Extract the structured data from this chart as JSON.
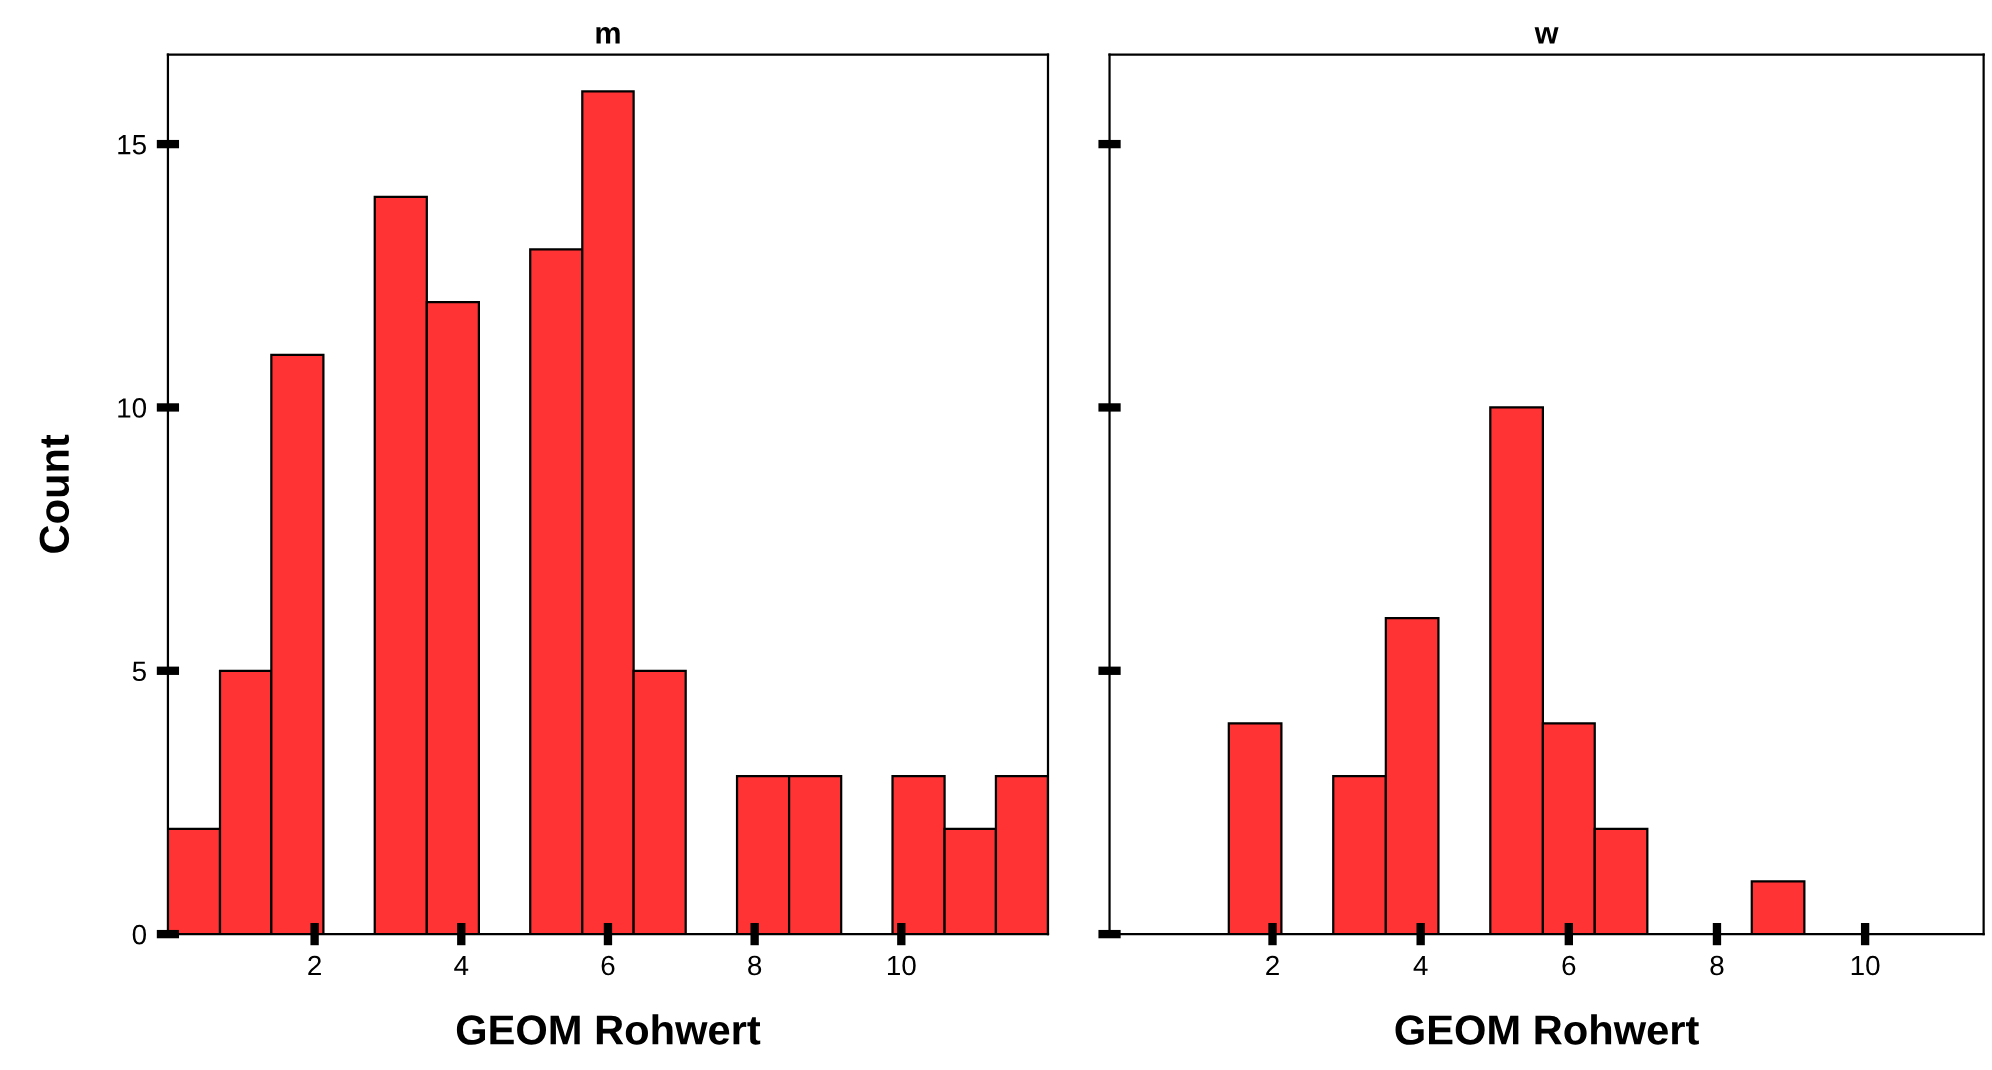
{
  "chart_data": [
    {
      "type": "histogram",
      "title": "m",
      "xlabel": "GEOM Rohwert",
      "ylabel": "Count",
      "color": "#ff3333",
      "bins": [
        0,
        0.71,
        1.41,
        2.12,
        2.82,
        3.53,
        4.24,
        4.94,
        5.65,
        6.35,
        7.06,
        7.76,
        8.47,
        9.18,
        9.88,
        10.59,
        11.29,
        12
      ],
      "values": [
        2,
        5,
        11,
        0,
        14,
        12,
        0,
        13,
        16,
        5,
        0,
        3,
        3,
        0,
        3,
        2,
        3
      ],
      "xlim": [
        0,
        12
      ],
      "xticks": [
        2,
        4,
        6,
        8,
        10
      ],
      "ylim": [
        0,
        16.7
      ],
      "yticks": [
        0,
        5,
        10,
        15
      ],
      "grid": false
    },
    {
      "type": "histogram",
      "title": "w",
      "xlabel": "GEOM Rohwert",
      "color": "#ff3333",
      "bins": [
        1.41,
        2.12,
        2.82,
        3.53,
        4.24,
        4.94,
        5.65,
        6.35,
        7.06,
        8.47,
        9.18
      ],
      "values": [
        4,
        0,
        3,
        6,
        0,
        10,
        4,
        2,
        0,
        1
      ],
      "xlim": [
        -0.2,
        11.6
      ],
      "xticks": [
        2,
        4,
        6,
        8,
        10
      ],
      "ylim": [
        0,
        16.7
      ],
      "yticks": [
        0,
        5,
        10,
        15
      ],
      "tick_labels": "x",
      "grid": false
    }
  ]
}
